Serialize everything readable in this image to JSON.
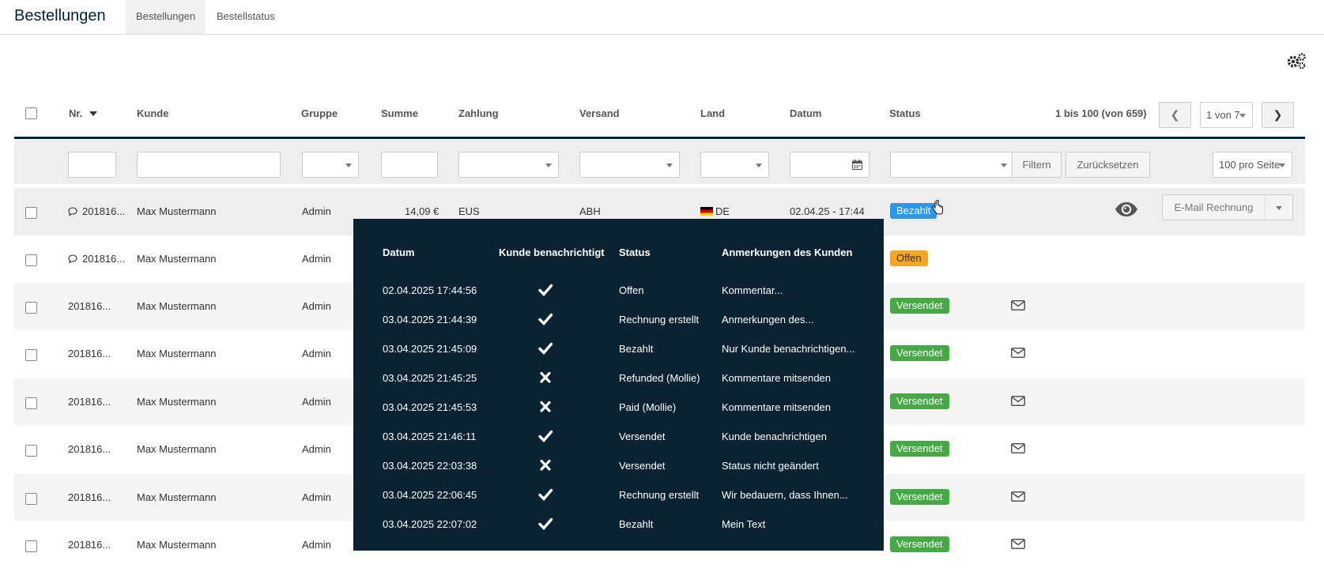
{
  "header": {
    "title": "Bestellungen",
    "tabs": [
      {
        "label": "Bestellungen",
        "active": true
      },
      {
        "label": "Bestellstatus",
        "active": false
      }
    ]
  },
  "table": {
    "columns": [
      "Nr.",
      "Kunde",
      "Gruppe",
      "Summe",
      "Zahlung",
      "Versand",
      "Land",
      "Datum",
      "Status"
    ],
    "pager_info": "1 bis 100 (von 659)",
    "page_select": "1 von 7",
    "filter_button": "Filtern",
    "reset_button": "Zurücksetzen",
    "per_page": "100 pro Seite",
    "email_invoice_button": "E-Mail Rechnung",
    "rows": [
      {
        "nr": "201816...",
        "kunde": "Max Mustermann",
        "gruppe": "Admin",
        "summe": "14,09 €",
        "zahlung": "EUS",
        "versand": "ABH",
        "land": "DE",
        "datum": "02.04.25 - 17:44",
        "status": "Bezahlt",
        "comment": true
      },
      {
        "nr": "201816...",
        "kunde": "Max Mustermann",
        "gruppe": "Admin",
        "status": "Offen",
        "comment": true
      },
      {
        "nr": "201816...",
        "kunde": "Max Mustermann",
        "gruppe": "Admin",
        "status": "Versendet"
      },
      {
        "nr": "201816...",
        "kunde": "Max Mustermann",
        "gruppe": "Admin",
        "status": "Versendet"
      },
      {
        "nr": "201816...",
        "kunde": "Max Mustermann",
        "gruppe": "Admin",
        "status": "Versendet"
      },
      {
        "nr": "201816...",
        "kunde": "Max Mustermann",
        "gruppe": "Admin",
        "status": "Versendet"
      },
      {
        "nr": "201816...",
        "kunde": "Max Mustermann",
        "gruppe": "Admin",
        "status": "Versendet"
      },
      {
        "nr": "201816...",
        "kunde": "Max Mustermann",
        "gruppe": "Admin",
        "status": "Versendet"
      }
    ]
  },
  "popover": {
    "columns": [
      "Datum",
      "Kunde benachrichtigt",
      "Status",
      "Anmerkungen des Kunden"
    ],
    "rows": [
      {
        "datum": "02.04.2025 17:44:56",
        "notified": "check-icon",
        "status": "Offen",
        "note": "Kommentar..."
      },
      {
        "datum": "03.04.2025 21:44:39",
        "notified": "check-icon",
        "status": "Rechnung erstellt",
        "note": "Anmerkungen des..."
      },
      {
        "datum": "03.04.2025 21:45:09",
        "notified": "check-icon",
        "status": "Bezahlt",
        "note": "Nur Kunde benachrichtigen..."
      },
      {
        "datum": "03.04.2025 21:45:25",
        "notified": "cross-icon",
        "status": "Refunded (Mollie)",
        "note": "Kommentare mitsenden"
      },
      {
        "datum": "03.04.2025 21:45:53",
        "notified": "cross-icon",
        "status": "Paid (Mollie)",
        "note": "Kommentare mitsenden"
      },
      {
        "datum": "03.04.2025 21:46:11",
        "notified": "check-icon",
        "status": "Versendet",
        "note": "Kunde benachrichtigen"
      },
      {
        "datum": "03.04.2025 22:03:38",
        "notified": "cross-icon",
        "status": "Versendet",
        "note": "Status nicht geändert"
      },
      {
        "datum": "03.04.2025 22:06:45",
        "notified": "check-icon",
        "status": "Rechnung erstellt",
        "note": "Wir bedauern, dass Ihnen..."
      },
      {
        "datum": "03.04.2025 22:07:02",
        "notified": "check-icon",
        "status": "Bezahlt",
        "note": "Mein Text"
      }
    ]
  },
  "colors": {
    "brand_dark": "#0a2231",
    "status_paid": "#2d96e8",
    "status_open": "#f5a623",
    "status_shipped": "#46a946"
  }
}
